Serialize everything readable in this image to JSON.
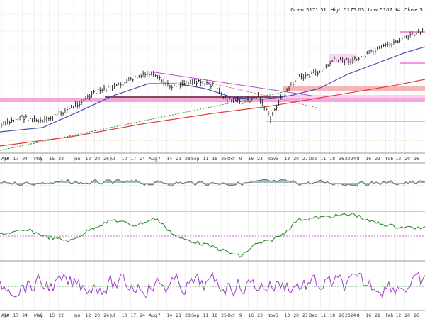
{
  "header": {
    "open_label": "Open",
    "open_value": "5171.51",
    "high_label": "High",
    "high_value": "5175.03",
    "low_label": "Low",
    "low_value": "5107.94",
    "close_label": "Close",
    "close_value": "5"
  },
  "chart_data": {
    "type": "line",
    "title": "",
    "panels": [
      "price",
      "oscillator-1",
      "oscillator-2",
      "oscillator-3"
    ],
    "x_axis_labels": [
      {
        "label": "Apr",
        "w": 0
      },
      {
        "label": "10",
        "w": 0.3
      },
      {
        "label": "17",
        "w": 1.3
      },
      {
        "label": "24",
        "w": 2.3
      },
      {
        "label": "May",
        "w": 3.6
      },
      {
        "label": "8",
        "w": 4.3
      },
      {
        "label": "15",
        "w": 5.3
      },
      {
        "label": "22",
        "w": 6.3
      },
      {
        "label": "Jun",
        "w": 8.0
      },
      {
        "label": "12",
        "w": 9.3
      },
      {
        "label": "20",
        "w": 10.3
      },
      {
        "label": "26",
        "w": 11.3
      },
      {
        "label": "Jul",
        "w": 12.0
      },
      {
        "label": "10",
        "w": 13.3
      },
      {
        "label": "17",
        "w": 14.3
      },
      {
        "label": "24",
        "w": 15.3
      },
      {
        "label": "Aug",
        "w": 16.3
      },
      {
        "label": "7",
        "w": 17.3
      },
      {
        "label": "14",
        "w": 18.3
      },
      {
        "label": "21",
        "w": 19.3
      },
      {
        "label": "28",
        "w": 20.3
      },
      {
        "label": "Sep",
        "w": 21.0
      },
      {
        "label": "11",
        "w": 22.3
      },
      {
        "label": "18",
        "w": 23.3
      },
      {
        "label": "25",
        "w": 24.3
      },
      {
        "label": "Oct",
        "w": 25.0
      },
      {
        "label": "9",
        "w": 26.3
      },
      {
        "label": "16",
        "w": 27.3
      },
      {
        "label": "23",
        "w": 28.3
      },
      {
        "label": "Nov",
        "w": 29.4
      },
      {
        "label": "6",
        "w": 30.3
      },
      {
        "label": "13",
        "w": 31.3
      },
      {
        "label": "20",
        "w": 32.3
      },
      {
        "label": "27",
        "w": 33.3
      },
      {
        "label": "Dec",
        "w": 34.0
      },
      {
        "label": "11",
        "w": 35.3
      },
      {
        "label": "18",
        "w": 36.3
      },
      {
        "label": "26",
        "w": 37.3
      },
      {
        "label": "2024",
        "w": 38.0
      },
      {
        "label": "8",
        "w": 39.3
      },
      {
        "label": "16",
        "w": 40.3
      },
      {
        "label": "22",
        "w": 41.3
      },
      {
        "label": "Feb",
        "w": 42.5
      },
      {
        "label": "12",
        "w": 43.6
      },
      {
        "label": "20",
        "w": 44.6
      },
      {
        "label": "26",
        "w": 45.6
      }
    ],
    "series": [
      {
        "role": "price-bars",
        "color": "#111111"
      },
      {
        "role": "ma-short",
        "color": "#4b4bb5"
      },
      {
        "role": "ma-long",
        "color": "#e03a3a"
      },
      {
        "role": "trend-dotted",
        "color": "#2e8b2e"
      },
      {
        "role": "osc1-line",
        "color": "#6c6c7c"
      },
      {
        "role": "osc2-line",
        "color": "#2e8b2e"
      },
      {
        "role": "osc3-line",
        "color": "#9b3fc6"
      }
    ],
    "grid": true,
    "legend": "none"
  }
}
